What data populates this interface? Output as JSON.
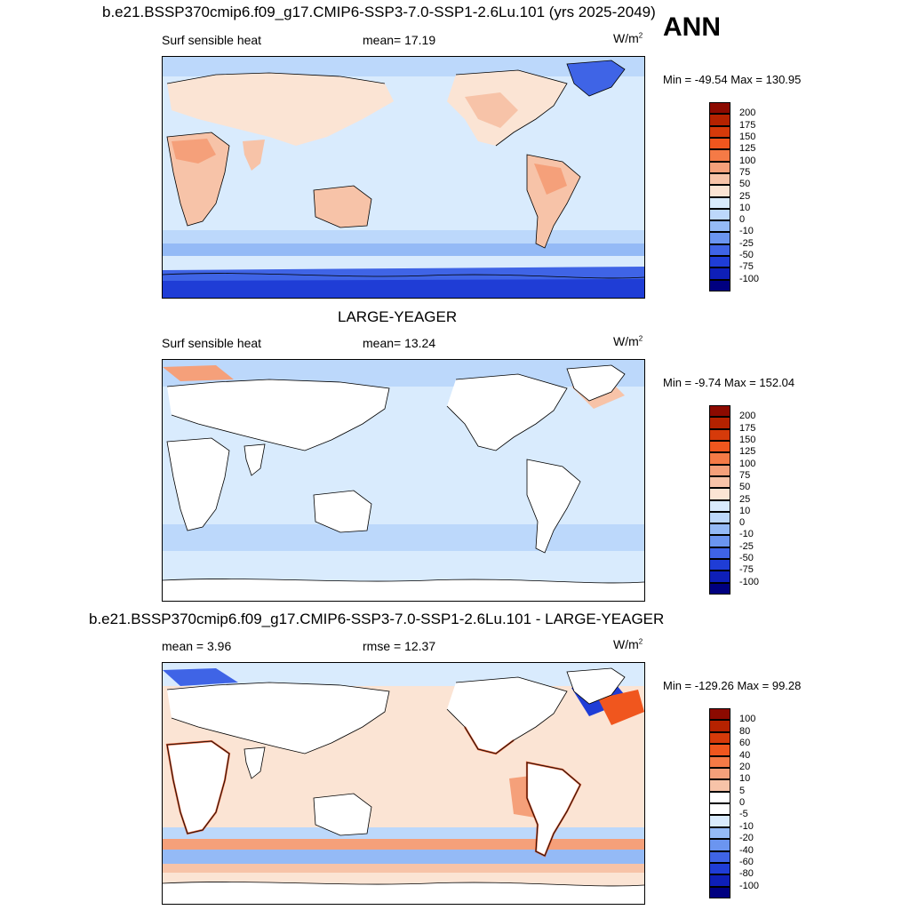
{
  "ann_label": "ANN",
  "panels": [
    {
      "title": "b.e21.BSSP370cmip6.f09_g17.CMIP6-SSP3-7.0-SSP1-2.6Lu.101 (yrs 2025-2049)",
      "left_label": "Surf sensible heat",
      "center_label": "mean=  17.19",
      "units": "W/m",
      "units_sup": "2",
      "minmax": "Min = -49.54 Max = 130.95",
      "colorbar": {
        "labels": [
          "200",
          "175",
          "150",
          "125",
          "100",
          "75",
          "50",
          "25",
          "10",
          "0",
          "-10",
          "-25",
          "-50",
          "-75",
          "-100"
        ],
        "colors": [
          "#8c0a00",
          "#b52200",
          "#d63a0a",
          "#f0561e",
          "#f57a46",
          "#f5a07a",
          "#f7c3a8",
          "#fbe4d4",
          "#d9ebfd",
          "#bcd8fb",
          "#94baf6",
          "#6b95f0",
          "#3f64e6",
          "#1f3dd6",
          "#0e1fb8",
          "#000080"
        ]
      }
    },
    {
      "title": "LARGE-YEAGER",
      "left_label": "Surf sensible heat",
      "center_label": "mean=  13.24",
      "units": "W/m",
      "units_sup": "2",
      "minmax": "Min =  -9.74 Max = 152.04",
      "colorbar": {
        "labels": [
          "200",
          "175",
          "150",
          "125",
          "100",
          "75",
          "50",
          "25",
          "10",
          "0",
          "-10",
          "-25",
          "-50",
          "-75",
          "-100"
        ],
        "colors": [
          "#8c0a00",
          "#b52200",
          "#d63a0a",
          "#f0561e",
          "#f57a46",
          "#f5a07a",
          "#f7c3a8",
          "#fbe4d4",
          "#d9ebfd",
          "#bcd8fb",
          "#94baf6",
          "#6b95f0",
          "#3f64e6",
          "#1f3dd6",
          "#0e1fb8",
          "#000080"
        ]
      }
    },
    {
      "title": "b.e21.BSSP370cmip6.f09_g17.CMIP6-SSP3-7.0-SSP1-2.6Lu.101 - LARGE-YEAGER",
      "left_label": "mean =   3.96",
      "center_label": "rmse =  12.37",
      "units": "W/m",
      "units_sup": "2",
      "minmax": "Min = -129.26 Max =  99.28",
      "colorbar": {
        "labels": [
          "100",
          "80",
          "60",
          "40",
          "20",
          "10",
          "5",
          "0",
          "-5",
          "-10",
          "-20",
          "-40",
          "-60",
          "-80",
          "-100"
        ],
        "colors": [
          "#8c0a00",
          "#b52200",
          "#d63a0a",
          "#f0561e",
          "#f57a46",
          "#f5a07a",
          "#f7c3a8",
          "#ffffff",
          "#ffffff",
          "#d9ebfd",
          "#94baf6",
          "#6b95f0",
          "#3f64e6",
          "#1f3dd6",
          "#0e1fb8",
          "#000080"
        ]
      }
    }
  ]
}
